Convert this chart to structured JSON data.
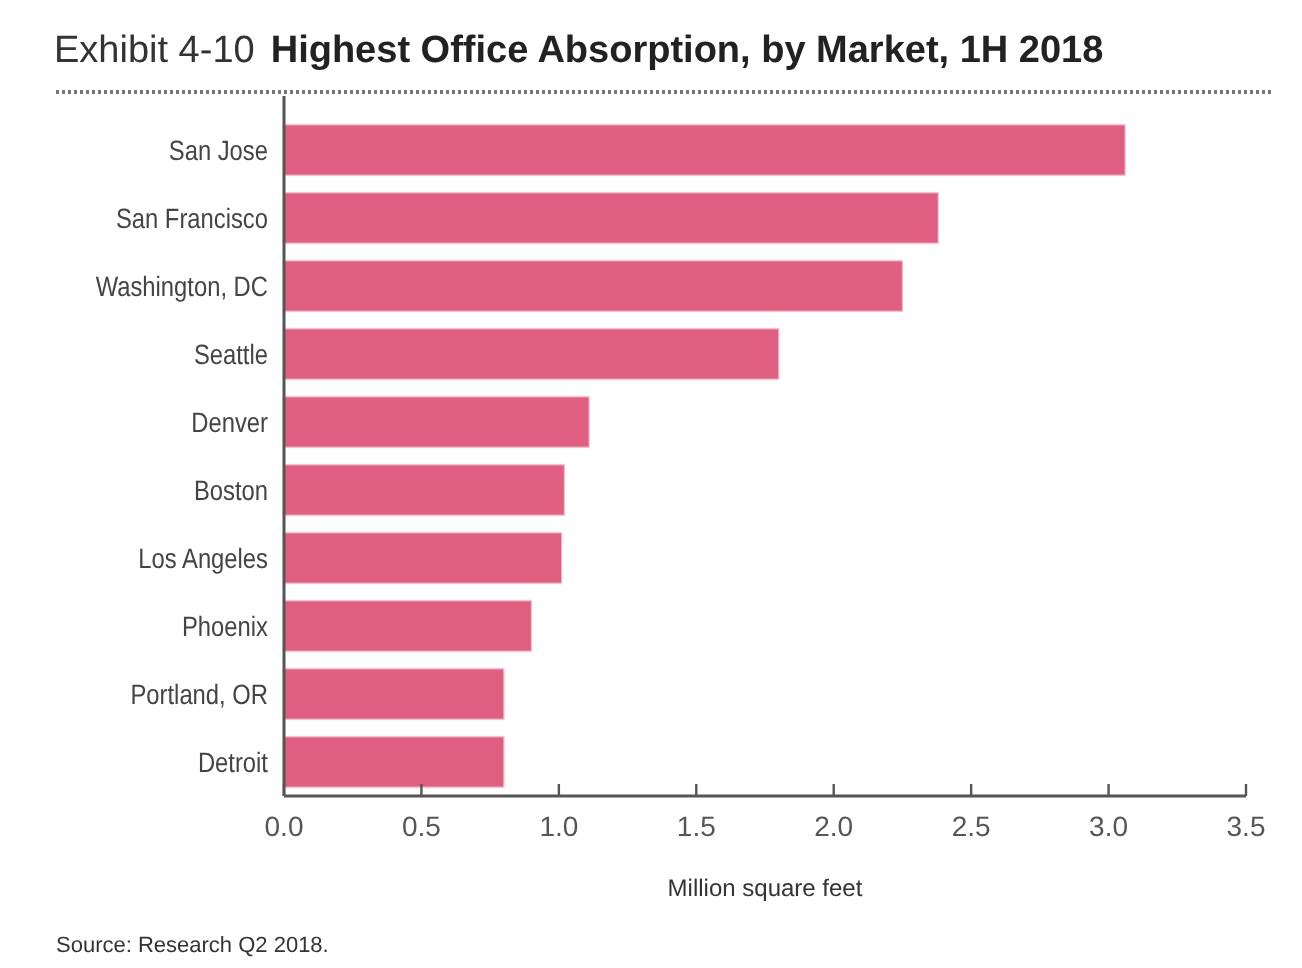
{
  "chart_data": {
    "type": "bar",
    "orientation": "horizontal",
    "title": "Highest Office Absorption, by Market, 1H 2018",
    "xlabel": "Million square feet",
    "categories": [
      "San Jose",
      "San Francisco",
      "Washington, DC",
      "Seattle",
      "Denver",
      "Boston",
      "Los Angeles",
      "Phoenix",
      "Portland, OR",
      "Detroit"
    ],
    "values": [
      3.06,
      2.38,
      2.25,
      1.8,
      1.11,
      1.02,
      1.01,
      0.9,
      0.8,
      0.8
    ],
    "color": "#e05e80",
    "xlim": [
      0,
      3.5
    ],
    "xticks": [
      {
        "value": 0,
        "label": "0.0"
      },
      0.5,
      {
        "value": 1,
        "label": "1.0"
      },
      1.5,
      {
        "value": 2,
        "label": "2.0"
      },
      2.5,
      {
        "value": 3,
        "label": "3.0"
      },
      3.5
    ],
    "grid": false,
    "annotations": [
      "Exhibit 4-10",
      "Source: Research Q2 2018."
    ]
  }
}
